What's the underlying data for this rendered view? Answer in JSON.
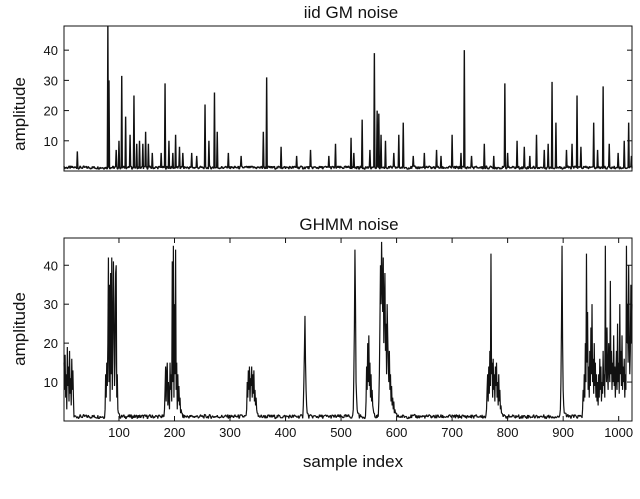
{
  "chart_data": [
    {
      "type": "line",
      "title": "iid GM noise",
      "xlabel": "",
      "ylabel": "amplitude",
      "xlim": [
        1,
        1024
      ],
      "ylim": [
        0,
        48
      ],
      "yticks": [
        10,
        20,
        30,
        40
      ],
      "xticks": [],
      "baseline": 1.2,
      "spikes": [
        [
          25,
          6.5
        ],
        [
          80,
          48
        ],
        [
          82,
          30
        ],
        [
          95,
          7
        ],
        [
          100,
          10
        ],
        [
          105,
          31.5
        ],
        [
          112,
          18
        ],
        [
          120,
          12
        ],
        [
          127,
          25
        ],
        [
          132,
          9
        ],
        [
          137,
          10
        ],
        [
          143,
          9
        ],
        [
          148,
          13
        ],
        [
          153,
          9
        ],
        [
          160,
          6
        ],
        [
          176,
          6
        ],
        [
          183,
          29
        ],
        [
          190,
          10
        ],
        [
          197,
          6
        ],
        [
          202,
          12
        ],
        [
          209,
          8
        ],
        [
          215,
          6
        ],
        [
          231,
          6
        ],
        [
          240,
          5
        ],
        [
          255,
          22
        ],
        [
          262,
          10
        ],
        [
          272,
          26
        ],
        [
          277,
          13
        ],
        [
          297,
          6
        ],
        [
          320,
          5
        ],
        [
          360,
          13
        ],
        [
          366,
          31
        ],
        [
          392,
          8
        ],
        [
          420,
          5
        ],
        [
          445,
          7
        ],
        [
          478,
          5
        ],
        [
          490,
          9
        ],
        [
          518,
          11
        ],
        [
          523,
          6
        ],
        [
          538,
          17
        ],
        [
          552,
          7
        ],
        [
          560,
          39
        ],
        [
          565,
          20
        ],
        [
          568,
          19
        ],
        [
          572,
          12
        ],
        [
          580,
          10
        ],
        [
          595,
          6
        ],
        [
          604,
          12
        ],
        [
          612,
          16
        ],
        [
          630,
          5
        ],
        [
          650,
          6
        ],
        [
          672,
          7
        ],
        [
          680,
          5
        ],
        [
          700,
          12
        ],
        [
          716,
          6
        ],
        [
          722,
          40
        ],
        [
          735,
          5
        ],
        [
          758,
          9
        ],
        [
          775,
          5
        ],
        [
          795,
          29
        ],
        [
          800,
          6
        ],
        [
          817,
          10
        ],
        [
          830,
          8
        ],
        [
          840,
          5
        ],
        [
          852,
          12
        ],
        [
          866,
          7
        ],
        [
          873,
          9
        ],
        [
          880,
          29.5
        ],
        [
          887,
          16
        ],
        [
          906,
          7
        ],
        [
          916,
          9
        ],
        [
          925,
          25
        ],
        [
          932,
          8
        ],
        [
          955,
          16
        ],
        [
          962,
          7
        ],
        [
          972,
          28
        ],
        [
          983,
          9
        ],
        [
          999,
          6
        ],
        [
          1010,
          10
        ],
        [
          1018,
          16
        ],
        [
          1023,
          5
        ]
      ]
    },
    {
      "type": "line",
      "title": "GHMM noise",
      "xlabel": "sample index",
      "ylabel": "amplitude",
      "xlim": [
        1,
        1024
      ],
      "ylim": [
        0,
        47
      ],
      "yticks": [
        10,
        20,
        30,
        40
      ],
      "xticks": [
        100,
        200,
        300,
        400,
        500,
        600,
        700,
        800,
        900,
        1000
      ],
      "baseline": 1.2,
      "bursts": [
        [
          1,
          18,
          [
            15,
            8,
            17,
            6,
            12,
            3,
            19,
            9,
            14,
            5,
            18,
            7,
            11,
            4,
            16,
            8,
            13,
            6
          ]
        ],
        [
          75,
          100,
          [
            3,
            12,
            6,
            15,
            9,
            20,
            42,
            10,
            35,
            5,
            38,
            12,
            42,
            8,
            20,
            41,
            30,
            9,
            15,
            38,
            40,
            6,
            12,
            3,
            2,
            2
          ]
        ],
        [
          182,
          214,
          [
            3,
            8,
            14,
            5,
            12,
            15,
            4,
            10,
            6,
            3,
            15,
            8,
            12,
            5,
            41,
            10,
            45,
            6,
            30,
            12,
            44,
            8,
            15,
            3,
            12,
            5,
            9,
            4,
            6,
            2,
            3,
            2,
            2
          ]
        ],
        [
          330,
          350,
          [
            3,
            10,
            6,
            13,
            8,
            14,
            5,
            11,
            9,
            14,
            6,
            12,
            7,
            13,
            5,
            8,
            4,
            6,
            3,
            2,
            2
          ]
        ],
        [
          432,
          440,
          [
            4,
            10,
            18,
            27,
            15,
            8,
            4,
            2,
            2
          ]
        ],
        [
          522,
          532,
          [
            3,
            12,
            24,
            44,
            30,
            10,
            6,
            3,
            2,
            2,
            2
          ]
        ],
        [
          545,
          560,
          [
            5,
            14,
            8,
            20,
            10,
            22,
            9,
            15,
            6,
            12,
            5,
            8,
            4,
            3,
            2,
            2
          ]
        ],
        [
          568,
          600,
          [
            5,
            12,
            25,
            40,
            30,
            46,
            35,
            28,
            42,
            20,
            30,
            38,
            18,
            25,
            12,
            30,
            22,
            15,
            10,
            18,
            8,
            12,
            5,
            9,
            4,
            6,
            3,
            5,
            2,
            3,
            2,
            2,
            2
          ]
        ],
        [
          762,
          790,
          [
            3,
            8,
            12,
            5,
            14,
            7,
            18,
            9,
            43,
            12,
            15,
            6,
            16,
            8,
            12,
            5,
            14,
            9,
            15,
            6,
            10,
            4,
            12,
            5,
            8,
            3,
            4,
            2,
            2
          ]
        ],
        [
          895,
          905,
          [
            3,
            10,
            25,
            45,
            20,
            8,
            4,
            2,
            2,
            2,
            2
          ]
        ],
        [
          935,
          1024,
          [
            3,
            8,
            5,
            12,
            6,
            20,
            10,
            43,
            15,
            28,
            8,
            14,
            6,
            18,
            9,
            24,
            12,
            30,
            10,
            16,
            7,
            20,
            9,
            15,
            6,
            12,
            5,
            10,
            4,
            12,
            6,
            16,
            8,
            14,
            5,
            10,
            7,
            18,
            9,
            12,
            6,
            45,
            15,
            10,
            24,
            12,
            8,
            20,
            14,
            10,
            36,
            12,
            18,
            8,
            15,
            10,
            22,
            9,
            14,
            6,
            12,
            18,
            8,
            25,
            10,
            15,
            7,
            30,
            12,
            18,
            9,
            22,
            8,
            14,
            10,
            16,
            6,
            12,
            8,
            45,
            20,
            30,
            15,
            40,
            22,
            12,
            18,
            35,
            20,
            30
          ]
        ]
      ]
    }
  ]
}
